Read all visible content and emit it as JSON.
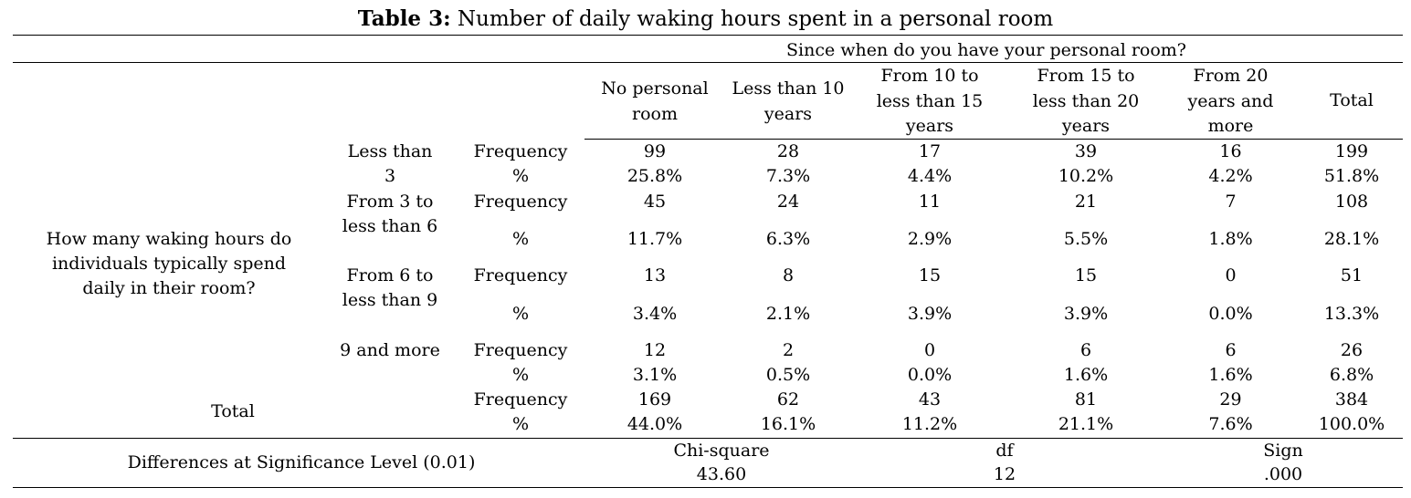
{
  "title": {
    "bold": "Table 3:",
    "text": " Number of daily waking hours spent in a personal room"
  },
  "spanner": "Since when do you have your personal room?",
  "col_headers": [
    "No personal room",
    "Less than 10 years",
    "From 10 to less than 15 years",
    "From 15 to less than 20 years",
    "From 20 years and more",
    "Total"
  ],
  "row_question": "How many waking hours do individuals typically spend daily in their room?",
  "stat_labels": {
    "frequency": "Frequency",
    "percent": "%"
  },
  "rows": [
    {
      "label": "Less than 3",
      "freq": [
        "99",
        "28",
        "17",
        "39",
        "16",
        "199"
      ],
      "pct": [
        "25.8%",
        "7.3%",
        "4.4%",
        "10.2%",
        "4.2%",
        "51.8%"
      ]
    },
    {
      "label": "From 3 to less than 6",
      "freq": [
        "45",
        "24",
        "11",
        "21",
        "7",
        "108"
      ],
      "pct": [
        "11.7%",
        "6.3%",
        "2.9%",
        "5.5%",
        "1.8%",
        "28.1%"
      ]
    },
    {
      "label": "From 6 to less than 9",
      "freq": [
        "13",
        "8",
        "15",
        "15",
        "0",
        "51"
      ],
      "pct": [
        "3.4%",
        "2.1%",
        "3.9%",
        "3.9%",
        "0.0%",
        "13.3%"
      ]
    },
    {
      "label": "9 and more",
      "freq": [
        "12",
        "2",
        "0",
        "6",
        "6",
        "26"
      ],
      "pct": [
        "3.1%",
        "0.5%",
        "0.0%",
        "1.6%",
        "1.6%",
        "6.8%"
      ]
    }
  ],
  "total": {
    "label": "Total",
    "freq": [
      "169",
      "62",
      "43",
      "81",
      "29",
      "384"
    ],
    "pct": [
      "44.0%",
      "16.1%",
      "11.2%",
      "21.1%",
      "7.6%",
      "100.0%"
    ]
  },
  "significance": {
    "label": "Differences at Significance Level (0.01)",
    "chi_square_label": "Chi-square",
    "chi_square": "43.60",
    "df_label": "df",
    "df": "12",
    "sign_label": "Sign",
    "sign": ".000"
  }
}
